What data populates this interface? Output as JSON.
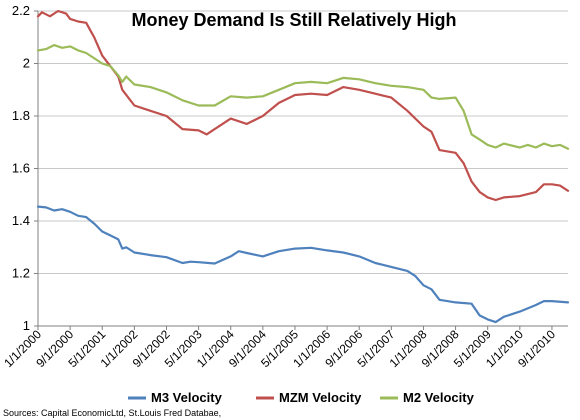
{
  "chart_data": {
    "type": "line",
    "title": "Money Demand Is Still Relatively High",
    "xlabel": "",
    "ylabel": "",
    "ylim": [
      1,
      2.2
    ],
    "yticks": [
      "1",
      "1.2",
      "1.4",
      "1.6",
      "1.8",
      "2",
      "2.2"
    ],
    "xlim": [
      "1/1/2000",
      "1/1/2011"
    ],
    "xticks": [
      "1/1/2000",
      "9/1/2000",
      "5/1/2001",
      "1/1/2002",
      "9/1/2002",
      "5/1/2003",
      "1/1/2004",
      "9/1/2004",
      "5/1/2005",
      "1/1/2006",
      "9/1/2006",
      "5/1/2007",
      "1/1/2008",
      "9/1/2008",
      "5/1/2009",
      "1/1/2010",
      "9/1/2010"
    ],
    "grid": true,
    "legend_position": "bottom",
    "source": "Sources: Capital EconomicLtd, St.Louis Fred Databae,",
    "series": [
      {
        "name": "M3 Velocity",
        "color": "#4f81bd",
        "points": [
          [
            "1/1/2000",
            1.455
          ],
          [
            "3/1/2000",
            1.452
          ],
          [
            "5/1/2000",
            1.44
          ],
          [
            "7/1/2000",
            1.445
          ],
          [
            "9/1/2000",
            1.435
          ],
          [
            "11/1/2000",
            1.42
          ],
          [
            "1/1/2001",
            1.415
          ],
          [
            "3/1/2001",
            1.39
          ],
          [
            "5/1/2001",
            1.36
          ],
          [
            "7/1/2001",
            1.345
          ],
          [
            "9/1/2001",
            1.33
          ],
          [
            "10/1/2001",
            1.295
          ],
          [
            "11/1/2001",
            1.3
          ],
          [
            "1/1/2002",
            1.28
          ],
          [
            "5/1/2002",
            1.27
          ],
          [
            "9/1/2002",
            1.262
          ],
          [
            "1/1/2003",
            1.24
          ],
          [
            "3/1/2003",
            1.245
          ],
          [
            "5/1/2003",
            1.243
          ],
          [
            "9/1/2003",
            1.238
          ],
          [
            "1/1/2004",
            1.265
          ],
          [
            "3/1/2004",
            1.285
          ],
          [
            "5/1/2004",
            1.278
          ],
          [
            "9/1/2004",
            1.265
          ],
          [
            "1/1/2005",
            1.285
          ],
          [
            "5/1/2005",
            1.295
          ],
          [
            "9/1/2005",
            1.298
          ],
          [
            "1/1/2006",
            1.288
          ],
          [
            "5/1/2006",
            1.28
          ],
          [
            "9/1/2006",
            1.265
          ],
          [
            "1/1/2007",
            1.24
          ],
          [
            "5/1/2007",
            1.225
          ],
          [
            "9/1/2007",
            1.21
          ],
          [
            "11/1/2007",
            1.19
          ],
          [
            "1/1/2008",
            1.155
          ],
          [
            "3/1/2008",
            1.14
          ],
          [
            "5/1/2008",
            1.1
          ],
          [
            "9/1/2008",
            1.09
          ],
          [
            "1/1/2009",
            1.085
          ],
          [
            "3/1/2009",
            1.04
          ],
          [
            "5/1/2009",
            1.025
          ],
          [
            "7/1/2009",
            1.015
          ],
          [
            "9/1/2009",
            1.035
          ],
          [
            "1/1/2010",
            1.055
          ],
          [
            "5/1/2010",
            1.08
          ],
          [
            "7/1/2010",
            1.095
          ],
          [
            "9/1/2010",
            1.095
          ],
          [
            "1/1/2011",
            1.09
          ]
        ]
      },
      {
        "name": "MZM Velocity",
        "color": "#c0504d",
        "points": [
          [
            "1/1/2000",
            2.18
          ],
          [
            "2/1/2000",
            2.195
          ],
          [
            "4/1/2000",
            2.18
          ],
          [
            "6/1/2000",
            2.2
          ],
          [
            "8/1/2000",
            2.19
          ],
          [
            "9/1/2000",
            2.17
          ],
          [
            "11/1/2000",
            2.16
          ],
          [
            "1/1/2001",
            2.155
          ],
          [
            "3/1/2001",
            2.1
          ],
          [
            "5/1/2001",
            2.03
          ],
          [
            "7/1/2001",
            1.99
          ],
          [
            "9/1/2001",
            1.95
          ],
          [
            "10/1/2001",
            1.9
          ],
          [
            "1/1/2002",
            1.84
          ],
          [
            "5/1/2002",
            1.82
          ],
          [
            "9/1/2002",
            1.8
          ],
          [
            "1/1/2003",
            1.75
          ],
          [
            "5/1/2003",
            1.745
          ],
          [
            "7/1/2003",
            1.73
          ],
          [
            "9/1/2003",
            1.75
          ],
          [
            "1/1/2004",
            1.79
          ],
          [
            "5/1/2004",
            1.77
          ],
          [
            "9/1/2004",
            1.8
          ],
          [
            "1/1/2005",
            1.85
          ],
          [
            "5/1/2005",
            1.88
          ],
          [
            "9/1/2005",
            1.885
          ],
          [
            "1/1/2006",
            1.88
          ],
          [
            "5/1/2006",
            1.91
          ],
          [
            "9/1/2006",
            1.9
          ],
          [
            "1/1/2007",
            1.885
          ],
          [
            "5/1/2007",
            1.87
          ],
          [
            "9/1/2007",
            1.82
          ],
          [
            "1/1/2008",
            1.76
          ],
          [
            "3/1/2008",
            1.74
          ],
          [
            "5/1/2008",
            1.67
          ],
          [
            "9/1/2008",
            1.66
          ],
          [
            "11/1/2008",
            1.62
          ],
          [
            "1/1/2009",
            1.55
          ],
          [
            "3/1/2009",
            1.51
          ],
          [
            "5/1/2009",
            1.49
          ],
          [
            "7/1/2009",
            1.48
          ],
          [
            "9/1/2009",
            1.49
          ],
          [
            "1/1/2010",
            1.495
          ],
          [
            "5/1/2010",
            1.51
          ],
          [
            "7/1/2010",
            1.54
          ],
          [
            "9/1/2010",
            1.54
          ],
          [
            "11/1/2010",
            1.535
          ],
          [
            "1/1/2011",
            1.515
          ]
        ]
      },
      {
        "name": "M2 Velocity",
        "color": "#9bbb59",
        "points": [
          [
            "1/1/2000",
            2.05
          ],
          [
            "3/1/2000",
            2.055
          ],
          [
            "5/1/2000",
            2.07
          ],
          [
            "7/1/2000",
            2.06
          ],
          [
            "9/1/2000",
            2.065
          ],
          [
            "11/1/2000",
            2.05
          ],
          [
            "1/1/2001",
            2.04
          ],
          [
            "5/1/2001",
            2.0
          ],
          [
            "7/1/2001",
            1.99
          ],
          [
            "9/1/2001",
            1.955
          ],
          [
            "10/1/2001",
            1.93
          ],
          [
            "11/1/2001",
            1.95
          ],
          [
            "1/1/2002",
            1.92
          ],
          [
            "5/1/2002",
            1.91
          ],
          [
            "9/1/2002",
            1.89
          ],
          [
            "1/1/2003",
            1.86
          ],
          [
            "5/1/2003",
            1.84
          ],
          [
            "9/1/2003",
            1.84
          ],
          [
            "1/1/2004",
            1.875
          ],
          [
            "5/1/2004",
            1.87
          ],
          [
            "9/1/2004",
            1.875
          ],
          [
            "1/1/2005",
            1.9
          ],
          [
            "5/1/2005",
            1.925
          ],
          [
            "9/1/2005",
            1.93
          ],
          [
            "1/1/2006",
            1.925
          ],
          [
            "5/1/2006",
            1.945
          ],
          [
            "9/1/2006",
            1.94
          ],
          [
            "1/1/2007",
            1.925
          ],
          [
            "5/1/2007",
            1.915
          ],
          [
            "9/1/2007",
            1.91
          ],
          [
            "1/1/2008",
            1.9
          ],
          [
            "3/1/2008",
            1.87
          ],
          [
            "5/1/2008",
            1.865
          ],
          [
            "9/1/2008",
            1.87
          ],
          [
            "11/1/2008",
            1.82
          ],
          [
            "1/1/2009",
            1.73
          ],
          [
            "3/1/2009",
            1.71
          ],
          [
            "5/1/2009",
            1.69
          ],
          [
            "7/1/2009",
            1.68
          ],
          [
            "9/1/2009",
            1.695
          ],
          [
            "1/1/2010",
            1.68
          ],
          [
            "3/1/2010",
            1.69
          ],
          [
            "5/1/2010",
            1.68
          ],
          [
            "7/1/2010",
            1.695
          ],
          [
            "9/1/2010",
            1.685
          ],
          [
            "11/1/2010",
            1.69
          ],
          [
            "1/1/2011",
            1.675
          ]
        ]
      }
    ]
  }
}
